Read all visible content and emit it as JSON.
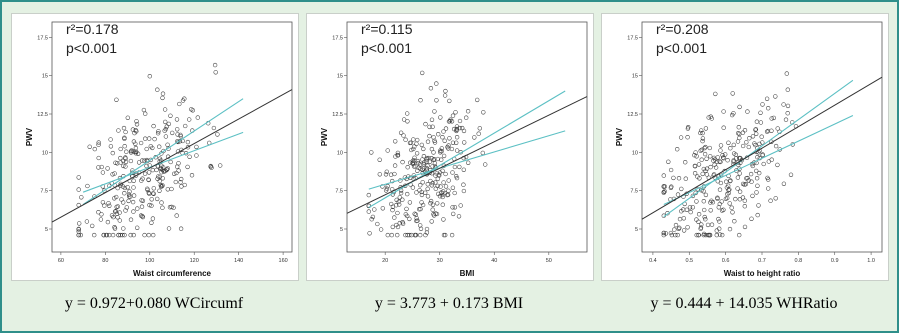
{
  "chart_data": [
    {
      "type": "scatter",
      "r2_text": "r²=0.178",
      "p_text": "p<0.001",
      "xlabel": "Waist circumference",
      "ylabel": "PWV",
      "xlim": [
        56,
        164
      ],
      "ylim": [
        3.5,
        18.5
      ],
      "xticks": [
        "60",
        "80",
        "100",
        "120",
        "140",
        "160"
      ],
      "yticks": [
        "5",
        "7.5",
        "10",
        "12.5",
        "15",
        "17.5"
      ],
      "regression": {
        "intercept": 0.972,
        "slope": 0.08
      },
      "ci_lines": [
        {
          "x": [
            70,
            142
          ],
          "y": [
            6.6,
            13.5
          ]
        },
        {
          "x": [
            70,
            142
          ],
          "y": [
            7.4,
            11.3
          ]
        }
      ],
      "equation": "y = 0.972+0.080 WCircumf"
    },
    {
      "type": "scatter",
      "r2_text": "r²=0.115",
      "p_text": "p<0.001",
      "xlabel": "BMI",
      "ylabel": "PWV",
      "xlim": [
        13,
        57
      ],
      "ylim": [
        3.5,
        18.5
      ],
      "xticks": [
        "20",
        "30",
        "40",
        "50"
      ],
      "yticks": [
        "5",
        "7.5",
        "10",
        "12.5",
        "15",
        "17.5"
      ],
      "regression": {
        "intercept": 3.773,
        "slope": 0.173
      },
      "ci_lines": [
        {
          "x": [
            17,
            53
          ],
          "y": [
            6.4,
            14.0
          ]
        },
        {
          "x": [
            17,
            53
          ],
          "y": [
            7.6,
            11.4
          ]
        }
      ],
      "equation": "y = 3.773 + 0.173 BMI"
    },
    {
      "type": "scatter",
      "r2_text": "r²=0.208",
      "p_text": "p<0.001",
      "xlabel": "Waist to height ratio",
      "ylabel": "PWV",
      "xlim": [
        0.37,
        1.03
      ],
      "ylim": [
        3.5,
        18.5
      ],
      "xticks": [
        "0.4",
        "0.5",
        "0.6",
        "0.7",
        "0.8",
        "0.9",
        "1.0"
      ],
      "yticks": [
        "5",
        "7.5",
        "10",
        "12.5",
        "15",
        "17.5"
      ],
      "regression": {
        "intercept": 0.444,
        "slope": 14.035
      },
      "ci_lines": [
        {
          "x": [
            0.43,
            0.95
          ],
          "y": [
            5.8,
            14.7
          ]
        },
        {
          "x": [
            0.43,
            0.95
          ],
          "y": [
            6.6,
            12.4
          ]
        }
      ],
      "equation": "y = 0.444 + 14.035 WHRatio"
    }
  ],
  "colors": {
    "frame": "#2f8f8a",
    "background": "#e4f1e3",
    "ci_line": "#5cc0c4",
    "fit_line": "#333333",
    "points": "#3a3a3a"
  }
}
